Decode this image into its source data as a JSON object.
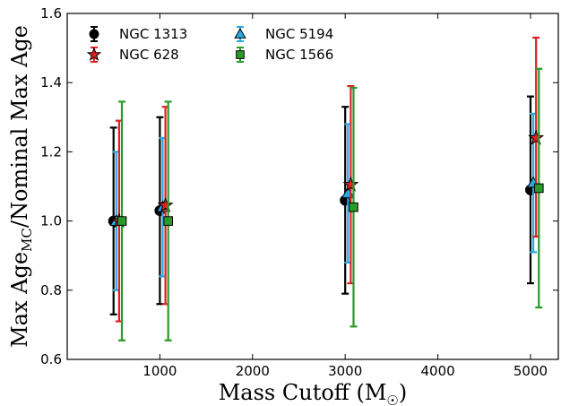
{
  "chart_data": {
    "type": "scatter",
    "xlabel": "Mass Cutoff (M",
    "xlabel_sub": "☉",
    "xlabel_close": ")",
    "ylabel": "Max Age",
    "ylabel_sub": "MC",
    "ylabel_rest": "/Nominal Max Age",
    "xlim": [
      0,
      5300
    ],
    "ylim": [
      0.6,
      1.6
    ],
    "xticks": [
      1000,
      2000,
      3000,
      4000,
      5000
    ],
    "xtick_labels": [
      "1000",
      "2000",
      "3000",
      "4000",
      "5000"
    ],
    "yticks": [
      0.6,
      0.8,
      1.0,
      1.2,
      1.4,
      1.6
    ],
    "ytick_labels": [
      "0.6",
      "0.8",
      "1.0",
      "1.2",
      "1.4",
      "1.6"
    ],
    "grid": false,
    "legend_position": "top",
    "series": [
      {
        "name": "NGC 1313",
        "marker": "circle",
        "marker_color": "#000000",
        "errbar_color": "#000000",
        "points": [
          {
            "x": 500,
            "y": 1.0,
            "lo": 0.73,
            "hi": 1.27
          },
          {
            "x": 1000,
            "y": 1.03,
            "lo": 0.76,
            "hi": 1.3
          },
          {
            "x": 3000,
            "y": 1.06,
            "lo": 0.79,
            "hi": 1.33
          },
          {
            "x": 5000,
            "y": 1.09,
            "lo": 0.82,
            "hi": 1.36
          }
        ]
      },
      {
        "name": "NGC 5194",
        "marker": "triangle",
        "marker_color": "#2aa8e0",
        "errbar_color": "#2aa8e0",
        "points": [
          {
            "x": 530,
            "y": 1.0,
            "lo": 0.8,
            "hi": 1.2
          },
          {
            "x": 1030,
            "y": 1.04,
            "lo": 0.84,
            "hi": 1.24
          },
          {
            "x": 3030,
            "y": 1.08,
            "lo": 0.88,
            "hi": 1.28
          },
          {
            "x": 5030,
            "y": 1.11,
            "lo": 0.91,
            "hi": 1.31
          }
        ]
      },
      {
        "name": "NGC 628",
        "marker": "star",
        "marker_color": "#e02020",
        "errbar_color": "#e02020",
        "points": [
          {
            "x": 560,
            "y": 1.0,
            "lo": 0.71,
            "hi": 1.29
          },
          {
            "x": 1060,
            "y": 1.045,
            "lo": 0.76,
            "hi": 1.33
          },
          {
            "x": 3060,
            "y": 1.105,
            "lo": 0.82,
            "hi": 1.39
          },
          {
            "x": 5060,
            "y": 1.24,
            "lo": 0.955,
            "hi": 1.53
          }
        ]
      },
      {
        "name": "NGC 1566",
        "marker": "square",
        "marker_color": "#2a9a2a",
        "errbar_color": "#2a9a2a",
        "points": [
          {
            "x": 590,
            "y": 1.0,
            "lo": 0.655,
            "hi": 1.345
          },
          {
            "x": 1090,
            "y": 1.0,
            "lo": 0.655,
            "hi": 1.345
          },
          {
            "x": 3090,
            "y": 1.04,
            "lo": 0.695,
            "hi": 1.385
          },
          {
            "x": 5090,
            "y": 1.095,
            "lo": 0.75,
            "hi": 1.44
          }
        ]
      }
    ]
  }
}
